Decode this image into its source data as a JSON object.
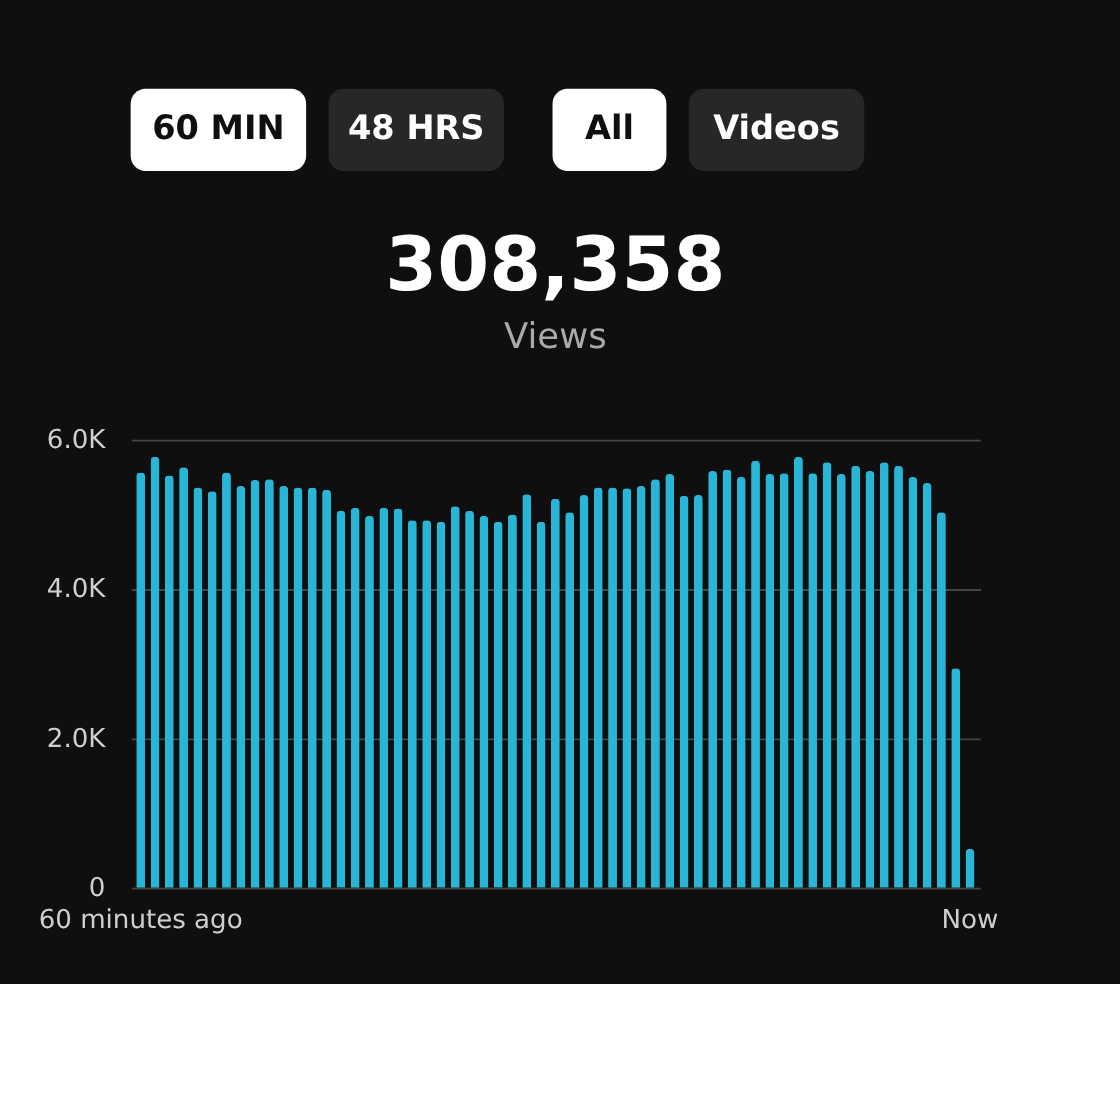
{
  "chart_data": {
    "type": "bar",
    "title": "308,358",
    "subtitle": "Views",
    "annotations": [
      "60 MIN",
      "48 HRS",
      "All",
      "Videos"
    ],
    "categories": [
      "60 minutes ago",
      null,
      null,
      null,
      null,
      null,
      null,
      null,
      null,
      null,
      null,
      null,
      null,
      null,
      null,
      null,
      null,
      null,
      null,
      null,
      null,
      null,
      null,
      null,
      null,
      null,
      null,
      null,
      null,
      null,
      null,
      null,
      null,
      null,
      null,
      null,
      null,
      null,
      null,
      null,
      null,
      null,
      null,
      null,
      null,
      null,
      null,
      null,
      null,
      null,
      null,
      null,
      null,
      null,
      null,
      null,
      null,
      null,
      "Now"
    ],
    "values": [
      5560,
      5770,
      5520,
      5630,
      5360,
      5310,
      5560,
      5380,
      5460,
      5470,
      5380,
      5360,
      5360,
      5330,
      5050,
      5090,
      4980,
      5090,
      5080,
      4920,
      4920,
      4900,
      5110,
      5050,
      4980,
      4900,
      5000,
      5270,
      4900,
      5210,
      5030,
      5260,
      5360,
      5360,
      5350,
      5380,
      5470,
      5540,
      5250,
      5260,
      5580,
      5600,
      5500,
      5720,
      5540,
      5550,
      5770,
      5550,
      5700,
      5540,
      5650,
      5580,
      5700,
      5650,
      5500,
      5420,
      5030,
      2940,
      520
    ],
    "color": "#29b6d6",
    "ylim": [
      0,
      6000
    ],
    "yticks": [
      {
        "value": 0,
        "label": "0"
      },
      {
        "value": 2000,
        "label": "2.0K"
      },
      {
        "value": 4000,
        "label": "4.0K"
      },
      {
        "value": 6000,
        "label": "6.0K"
      }
    ],
    "grid": "y"
  }
}
